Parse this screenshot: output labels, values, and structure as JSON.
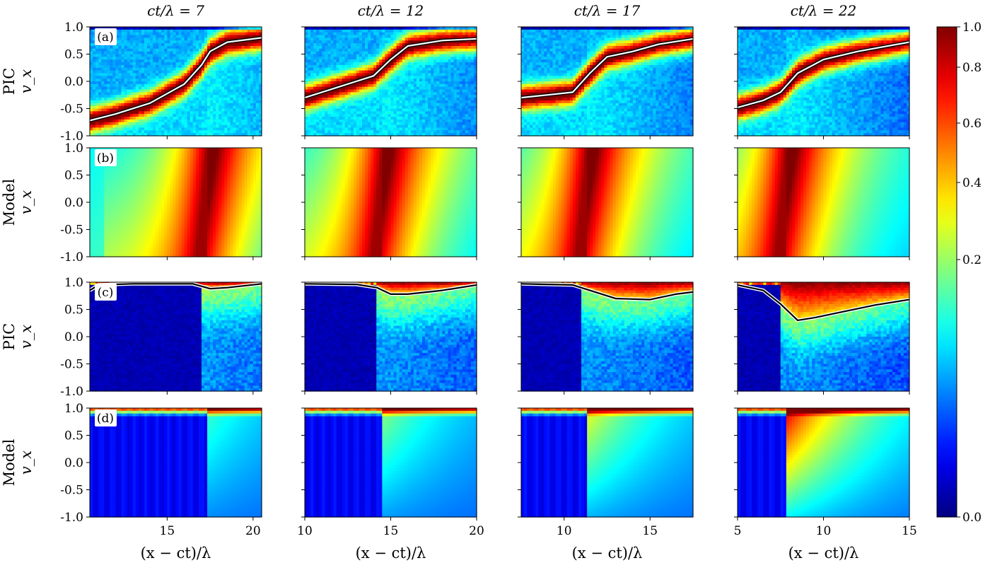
{
  "chart_data": {
    "type": "heatmap",
    "colormap": "jet",
    "grid": false,
    "column_titles": [
      "ct/λ = 7",
      "ct/λ = 12",
      "ct/λ = 17",
      "ct/λ = 22"
    ],
    "row_labels": [
      "PIC",
      "Model",
      "PIC",
      "Model"
    ],
    "panel_labels": [
      "(a)",
      "(b)",
      "(c)",
      "(d)"
    ],
    "ylabel": "v_x",
    "xlabel": "(x − ct)/λ",
    "ylim": [
      -1.0,
      1.0
    ],
    "yticks": [
      "1.0",
      "0.5",
      "0.0",
      "-0.5",
      "-1.0"
    ],
    "columns": [
      {
        "xlim": [
          10.5,
          20.5
        ],
        "xticks": [
          15,
          20
        ],
        "xtick_labels": [
          "15",
          "20"
        ],
        "ridge_x": 17.3
      },
      {
        "xlim": [
          10,
          20
        ],
        "xticks": [
          10,
          15,
          20
        ],
        "xtick_labels": [
          "10",
          "15",
          "20"
        ],
        "ridge_x": 14.5
      },
      {
        "xlim": [
          7.5,
          17.5
        ],
        "xticks": [
          10,
          15
        ],
        "xtick_labels": [
          "10",
          "15"
        ],
        "ridge_x": 11.3
      },
      {
        "xlim": [
          5,
          15
        ],
        "xticks": [
          5,
          10,
          15
        ],
        "xtick_labels": [
          "5",
          "10",
          "15"
        ],
        "ridge_x": 7.8
      }
    ],
    "mean_velocity_curves": {
      "row_a": [
        [
          [
            10.5,
            -0.72
          ],
          [
            12,
            -0.6
          ],
          [
            14,
            -0.4
          ],
          [
            16,
            -0.05
          ],
          [
            17,
            0.3
          ],
          [
            17.5,
            0.55
          ],
          [
            18.5,
            0.72
          ],
          [
            20.5,
            0.8
          ]
        ],
        [
          [
            10,
            -0.3
          ],
          [
            12,
            -0.1
          ],
          [
            14,
            0.1
          ],
          [
            15,
            0.4
          ],
          [
            16,
            0.65
          ],
          [
            18,
            0.75
          ],
          [
            20,
            0.78
          ]
        ],
        [
          [
            7.5,
            -0.3
          ],
          [
            9,
            -0.25
          ],
          [
            10.5,
            -0.2
          ],
          [
            11.5,
            0.15
          ],
          [
            12.5,
            0.45
          ],
          [
            14,
            0.55
          ],
          [
            15.5,
            0.68
          ],
          [
            17.5,
            0.78
          ]
        ],
        [
          [
            5,
            -0.48
          ],
          [
            6.5,
            -0.35
          ],
          [
            7.5,
            -0.2
          ],
          [
            8.5,
            0.15
          ],
          [
            10,
            0.4
          ],
          [
            12,
            0.55
          ],
          [
            15,
            0.72
          ]
        ]
      ],
      "row_c": [
        [
          [
            10.5,
            0.85
          ],
          [
            11,
            0.95
          ],
          [
            13,
            0.97
          ],
          [
            16.5,
            0.97
          ],
          [
            17.5,
            0.88
          ],
          [
            18.5,
            0.9
          ],
          [
            20.5,
            0.97
          ]
        ],
        [
          [
            10,
            0.97
          ],
          [
            13,
            0.96
          ],
          [
            14.2,
            0.9
          ],
          [
            15,
            0.78
          ],
          [
            16,
            0.78
          ],
          [
            18,
            0.85
          ],
          [
            20,
            0.95
          ]
        ],
        [
          [
            7.5,
            0.97
          ],
          [
            10.5,
            0.95
          ],
          [
            12,
            0.8
          ],
          [
            13,
            0.7
          ],
          [
            15,
            0.68
          ],
          [
            16.5,
            0.78
          ],
          [
            17.5,
            0.82
          ]
        ],
        [
          [
            5,
            0.95
          ],
          [
            6.5,
            0.85
          ],
          [
            7.5,
            0.6
          ],
          [
            8.5,
            0.3
          ],
          [
            9.5,
            0.35
          ],
          [
            11,
            0.45
          ],
          [
            13,
            0.58
          ],
          [
            15,
            0.68
          ]
        ]
      ]
    },
    "colorbar": {
      "ticks": [
        "1.0",
        "0.8",
        "0.6",
        "0.4",
        "0.2",
        "0.0"
      ],
      "range": [
        0.0,
        1.0
      ],
      "tick_values": [
        1.0,
        0.8,
        0.6,
        0.4,
        0.2,
        0.0
      ]
    }
  }
}
